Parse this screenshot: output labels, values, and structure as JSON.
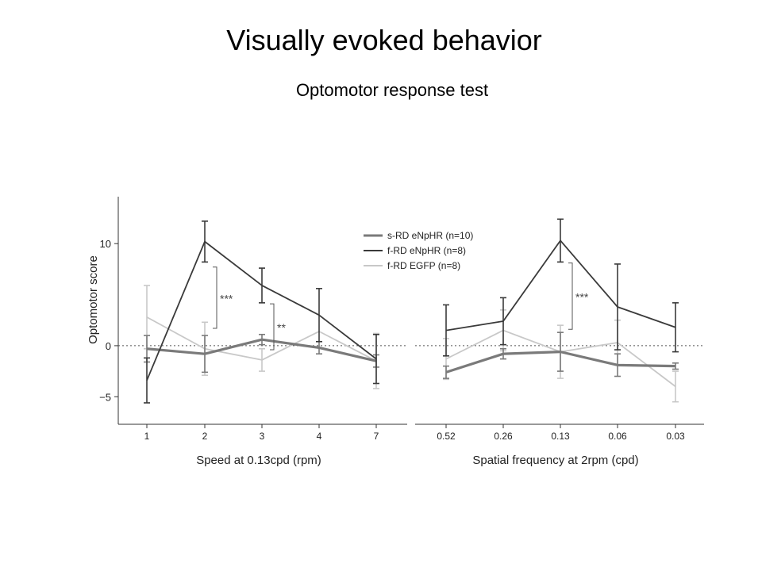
{
  "slide": {
    "title": "Visually evoked behavior",
    "subtitle": "Optomotor response test"
  },
  "chart_data": [
    {
      "type": "line",
      "panel": "left",
      "categories": [
        "1",
        "2",
        "3",
        "4",
        "7"
      ],
      "xlabel": "Speed at 0.13cpd (rpm)",
      "ylabel": "Optomotor score",
      "ylim": [
        -7.7,
        14.6
      ],
      "yticks": [
        {
          "value": 10,
          "label": "10"
        },
        {
          "value": 0,
          "label": "0"
        },
        {
          "value": -5,
          "label": "−5"
        }
      ],
      "zero_reference": "dotted line at 0",
      "series": [
        {
          "name": "s-RD eNpHR (n=10)",
          "color": "#7a7a7a",
          "values": [
            -0.3,
            -0.8,
            0.6,
            -0.2,
            -1.5
          ],
          "errors": [
            1.3,
            1.8,
            0.5,
            0.6,
            0.6
          ]
        },
        {
          "name": "f-RD eNpHR (n=8)",
          "color": "#3a3a3a",
          "values": [
            -3.4,
            10.2,
            5.9,
            3.0,
            -1.3
          ],
          "errors": [
            2.2,
            2.0,
            1.7,
            2.6,
            2.4
          ]
        },
        {
          "name": "f-RD EGFP (n=8)",
          "color": "#c8c8c8",
          "values": [
            2.8,
            -0.3,
            -1.4,
            1.4,
            -1.5
          ],
          "errors": [
            3.1,
            2.6,
            1.1,
            0.0,
            2.7
          ]
        }
      ],
      "annotations": [
        {
          "text": "***",
          "between": [
            "f-RD eNpHR (n=8)",
            "f-RD EGFP (n=8)"
          ],
          "at": "2",
          "from": 7.7,
          "to": 1.7
        },
        {
          "text": "**",
          "between": [
            "f-RD eNpHR (n=8)",
            "f-RD EGFP (n=8)"
          ],
          "at": "3",
          "from": 4.1,
          "to": -0.4
        }
      ]
    },
    {
      "type": "line",
      "panel": "right",
      "categories": [
        "0.52",
        "0.26",
        "0.13",
        "0.06",
        "0.03"
      ],
      "xlabel": "Spatial frequency at 2rpm (cpd)",
      "ylabel": "Optomotor score",
      "ylim": [
        -7.7,
        14.6
      ],
      "zero_reference": "dotted line at 0",
      "series": [
        {
          "name": "s-RD eNpHR (n=10)",
          "color": "#7a7a7a",
          "values": [
            -2.6,
            -0.8,
            -0.6,
            -1.9,
            -2.0
          ],
          "errors": [
            0.6,
            0.5,
            1.9,
            1.1,
            0.3
          ]
        },
        {
          "name": "f-RD eNpHR (n=8)",
          "color": "#3a3a3a",
          "values": [
            1.5,
            2.4,
            10.3,
            3.8,
            1.8
          ],
          "errors": [
            2.5,
            2.3,
            2.1,
            4.2,
            2.4
          ]
        },
        {
          "name": "f-RD EGFP (n=8)",
          "color": "#c8c8c8",
          "values": [
            -1.3,
            1.5,
            -0.6,
            0.3,
            -4.0
          ],
          "errors": [
            2.0,
            2.0,
            2.6,
            2.2,
            1.5
          ]
        }
      ],
      "annotations": [
        {
          "text": "***",
          "between": [
            "f-RD eNpHR (n=8)",
            "f-RD EGFP (n=8)"
          ],
          "at": "0.13",
          "from": 8.1,
          "to": 1.6
        }
      ]
    }
  ],
  "legend": {
    "placement": "top-center of left panel",
    "entries": [
      {
        "label": "s-RD eNpHR (n=10)",
        "color": "#7a7a7a"
      },
      {
        "label": "f-RD eNpHR (n=8)",
        "color": "#3a3a3a"
      },
      {
        "label": "f-RD EGFP (n=8)",
        "color": "#c8c8c8"
      }
    ]
  }
}
